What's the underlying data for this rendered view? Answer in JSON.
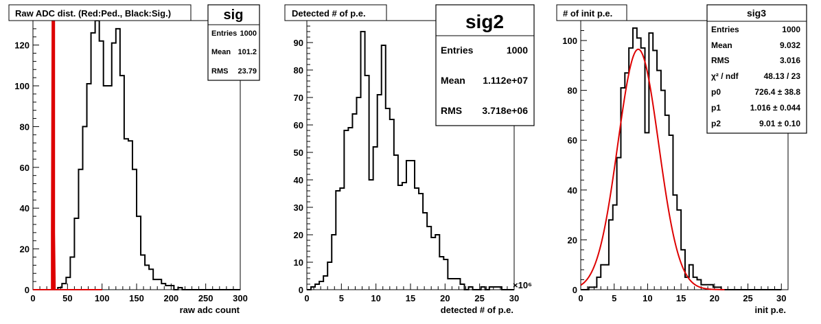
{
  "chart_data": [
    {
      "type": "bar",
      "title": "Raw ADC dist. (Red:Ped., Black:Sig.)",
      "xlabel": "raw adc count",
      "ylabel": "",
      "xlim": [
        0,
        300
      ],
      "ylim": [
        0,
        132
      ],
      "xticks": [
        0,
        50,
        100,
        150,
        200,
        250,
        300
      ],
      "yticks": [
        0,
        20,
        40,
        60,
        80,
        100,
        120
      ],
      "bin_width": 6,
      "series": [
        {
          "color": "#000000",
          "x_start": 0,
          "values": [
            0,
            0,
            0,
            0,
            0,
            0,
            1,
            3,
            6,
            16,
            35,
            59,
            80,
            101,
            126,
            132,
            122,
            100,
            100,
            121,
            128,
            105,
            74,
            73,
            59,
            36,
            17,
            12,
            10,
            5,
            5,
            3,
            2,
            2,
            0,
            1,
            0,
            0,
            0,
            0,
            0,
            0,
            0,
            0,
            0,
            0,
            0,
            0,
            0,
            0
          ]
        },
        {
          "color": "#dd0000",
          "type": "line",
          "points": [
            [
              0,
              0
            ],
            [
              25,
              0
            ],
            [
              27,
              0
            ],
            [
              27,
              28
            ],
            [
              28,
              140
            ],
            [
              29,
              140
            ],
            [
              29,
              0
            ],
            [
              30,
              0
            ],
            [
              30,
              140
            ],
            [
              31,
              140
            ],
            [
              31,
              28
            ],
            [
              32,
              0
            ],
            [
              100,
              0
            ]
          ]
        }
      ],
      "stats": {
        "name": "sig",
        "rows": [
          [
            "Entries",
            "1000"
          ],
          [
            "Mean",
            "101.2"
          ],
          [
            "RMS",
            "23.79"
          ]
        ]
      }
    },
    {
      "type": "bar",
      "title": "Detected # of p.e.",
      "xlabel": "detected # of p.e.",
      "ylabel": "",
      "x_multiplier": "×10⁶",
      "xlim": [
        0,
        30
      ],
      "ylim": [
        0,
        98
      ],
      "xticks": [
        0,
        5,
        10,
        15,
        20,
        25,
        30
      ],
      "yticks": [
        0,
        10,
        20,
        30,
        40,
        50,
        60,
        70,
        80,
        90
      ],
      "bin_width": 0.6,
      "series": [
        {
          "color": "#000000",
          "x_start": 0,
          "values": [
            0,
            1,
            2,
            3,
            5,
            10,
            20,
            36,
            37,
            58,
            59,
            64,
            70,
            94,
            78,
            40,
            52,
            71,
            89,
            66,
            62,
            49,
            38,
            39,
            47,
            47,
            37,
            35,
            28,
            23,
            19,
            20,
            12,
            11,
            4,
            4,
            4,
            2,
            0,
            1,
            0,
            0,
            1,
            0,
            1,
            1,
            1,
            0,
            0,
            0
          ]
        }
      ],
      "stats": {
        "name": "sig2",
        "rows": [
          [
            "Entries",
            "1000"
          ],
          [
            "Mean",
            "1.112e+07"
          ],
          [
            "RMS",
            "3.718e+06"
          ]
        ]
      }
    },
    {
      "type": "bar",
      "title": "# of init p.e.",
      "xlabel": "init p.e.",
      "ylabel": "",
      "xlim": [
        0,
        31
      ],
      "ylim": [
        0,
        108
      ],
      "xticks": [
        0,
        5,
        10,
        15,
        20,
        25,
        30
      ],
      "yticks": [
        0,
        20,
        40,
        60,
        80,
        100
      ],
      "bin_width": 0.6,
      "series": [
        {
          "color": "#000000",
          "x_start": 0,
          "values": [
            0,
            0,
            1,
            1,
            5,
            10,
            10,
            28,
            34,
            53,
            81,
            87,
            97,
            105,
            101,
            97,
            63,
            103,
            96,
            88,
            80,
            70,
            62,
            38,
            32,
            16,
            5,
            10,
            5,
            4,
            2,
            2,
            2,
            1,
            1,
            0,
            0,
            0,
            0,
            0,
            0,
            0,
            0,
            0,
            0,
            0,
            0,
            0,
            0,
            0
          ]
        },
        {
          "color": "#dd0000",
          "type": "gauss_fit",
          "constant": 96.5,
          "mean": 8.6,
          "sigma": 3.05,
          "x_range": [
            0,
            21.5
          ]
        }
      ],
      "stats": {
        "name": "sig3",
        "rows": [
          [
            "Entries",
            "1000"
          ],
          [
            "Mean",
            "9.032"
          ],
          [
            "RMS",
            "3.016"
          ],
          [
            "χ² / ndf",
            "48.13 / 23"
          ],
          [
            "p0",
            "726.4 ± 38.8"
          ],
          [
            "p1",
            "1.016 ± 0.044"
          ],
          [
            "p2",
            "9.01 ± 0.10"
          ]
        ]
      }
    }
  ]
}
